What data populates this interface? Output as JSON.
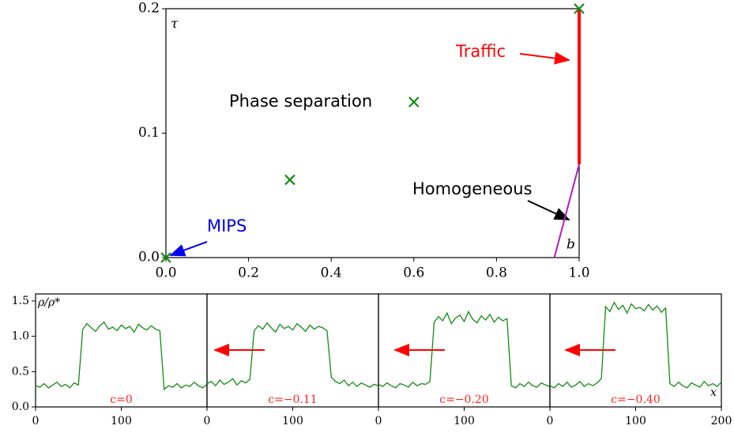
{
  "chart_data": [
    {
      "type": "scatter",
      "x": [
        0,
        0.3,
        0.6,
        1.0
      ],
      "y": [
        0,
        0.0625,
        0.125,
        0.2
      ],
      "color": "#138a13",
      "boundaries": [
        {
          "color": "#ff0000",
          "x": [
            1.0,
            1.0
          ],
          "y": [
            0.075,
            0.2
          ]
        },
        {
          "color": "#b01eb8",
          "x": [
            0.94,
            1.0
          ],
          "y": [
            0,
            0.075
          ]
        }
      ],
      "xlim": [
        0,
        1
      ],
      "ylim": [
        0,
        0.2
      ],
      "xticks": [
        {
          "value": 0,
          "label": "0.0"
        },
        0.2,
        0.4,
        0.6,
        0.8,
        {
          "value": 1,
          "label": "1.0"
        }
      ],
      "yticks": [
        {
          "value": 0,
          "label": "0.0"
        },
        0.1,
        0.2
      ],
      "xlabel": "b",
      "ylabel": "τ",
      "annotations": {
        "phase": "Phase separation",
        "traffic": "Traffic",
        "homogeneous": "Homogeneous",
        "mips": "MIPS"
      }
    },
    {
      "type": "line",
      "color": "#138a13",
      "x": [
        0,
        5,
        10,
        15,
        20,
        25,
        30,
        35,
        40,
        45,
        50,
        55,
        60,
        65,
        70,
        75,
        80,
        85,
        90,
        95,
        100,
        105,
        110,
        115,
        120,
        125,
        130,
        135,
        140,
        145,
        150,
        155,
        160,
        165,
        170,
        175,
        180,
        185,
        190,
        195,
        200
      ],
      "xlim": [
        0,
        200
      ],
      "ylim": [
        0,
        1.6
      ],
      "xticks": [
        0,
        100,
        200
      ],
      "yticks": [
        {
          "value": 0,
          "label": "0.0"
        },
        0.5,
        {
          "value": 1,
          "label": "1.0"
        },
        1.5
      ],
      "xlabel": "x",
      "ylabel": "ρ/ρ*",
      "panels": [
        {
          "label": "c=0",
          "values": [
            0.3,
            0.28,
            0.33,
            0.27,
            0.31,
            0.35,
            0.29,
            0.32,
            0.27,
            0.34,
            0.31,
            1.1,
            1.18,
            1.12,
            1.07,
            1.15,
            1.2,
            1.1,
            1.13,
            1.08,
            1.16,
            1.11,
            1.14,
            1.06,
            1.17,
            1.12,
            1.09,
            1.15,
            1.1,
            1.08,
            0.25,
            0.3,
            0.28,
            0.33,
            0.27,
            0.31,
            0.29,
            0.35,
            0.3,
            0.27,
            0.32
          ]
        },
        {
          "label": "c=−0.11",
          "values": [
            0.33,
            0.36,
            0.3,
            0.38,
            0.32,
            0.35,
            0.4,
            0.31,
            0.37,
            0.34,
            0.39,
            1.08,
            1.15,
            1.1,
            1.19,
            1.12,
            1.06,
            1.17,
            1.11,
            1.14,
            1.09,
            1.18,
            1.13,
            1.07,
            1.16,
            1.1,
            1.14,
            1.12,
            1.08,
            0.42,
            0.36,
            0.33,
            0.38,
            0.3,
            0.35,
            0.29,
            0.34,
            0.31,
            0.28,
            0.32,
            0.3
          ]
        },
        {
          "label": "c=−0.20",
          "values": [
            0.32,
            0.29,
            0.34,
            0.3,
            0.27,
            0.33,
            0.31,
            0.28,
            0.35,
            0.3,
            0.33,
            0.32,
            0.36,
            1.2,
            1.28,
            1.22,
            1.33,
            1.18,
            1.26,
            1.3,
            1.21,
            1.35,
            1.24,
            1.19,
            1.29,
            1.23,
            1.31,
            1.2,
            1.27,
            1.22,
            1.25,
            0.3,
            0.27,
            0.33,
            0.29,
            0.35,
            0.3,
            0.28,
            0.34,
            0.31,
            0.29
          ]
        },
        {
          "label": "c=−0.40",
          "values": [
            0.3,
            0.27,
            0.33,
            0.29,
            0.35,
            0.28,
            0.31,
            0.36,
            0.29,
            0.33,
            0.3,
            0.34,
            0.4,
            1.42,
            1.35,
            1.48,
            1.38,
            1.44,
            1.33,
            1.46,
            1.39,
            1.41,
            1.36,
            1.45,
            1.37,
            1.43,
            1.34,
            1.4,
            0.33,
            0.29,
            0.35,
            0.3,
            0.27,
            0.34,
            0.31,
            0.28,
            0.36,
            0.3,
            0.33,
            0.29,
            0.35
          ]
        }
      ]
    }
  ]
}
